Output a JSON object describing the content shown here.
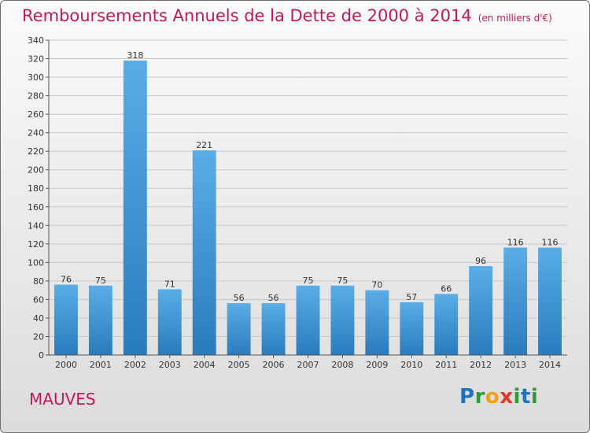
{
  "title": "Remboursements Annuels de la Dette de 2000 à 2014",
  "subtitle": "(en milliers d'€)",
  "location": "MAUVES",
  "logo": {
    "letters": [
      "P",
      "r",
      "o",
      "x",
      "i",
      "t",
      "i"
    ],
    "text": "Proxiti"
  },
  "colors": {
    "bar_top": "#5aade6",
    "bar_bottom": "#2a7bbd",
    "title": "#c2185b"
  },
  "chart_data": {
    "type": "bar",
    "title": "Remboursements Annuels de la Dette de 2000 à 2014",
    "subtitle": "(en milliers d'€)",
    "categories": [
      "2000",
      "2001",
      "2002",
      "2003",
      "2004",
      "2005",
      "2006",
      "2007",
      "2008",
      "2009",
      "2010",
      "2011",
      "2012",
      "2013",
      "2014"
    ],
    "values": [
      76,
      75,
      318,
      71,
      221,
      56,
      56,
      75,
      75,
      70,
      57,
      66,
      96,
      116,
      116
    ],
    "data_labels": [
      "76",
      "75",
      "318",
      "71",
      "221",
      "56",
      "56",
      "75",
      "75",
      "70",
      "57",
      "66",
      "96",
      "116",
      "116"
    ],
    "ylim": [
      0,
      340
    ],
    "yticks": [
      0,
      20,
      40,
      60,
      80,
      100,
      120,
      140,
      160,
      180,
      200,
      220,
      240,
      260,
      280,
      300,
      320,
      340
    ],
    "grid": true
  }
}
